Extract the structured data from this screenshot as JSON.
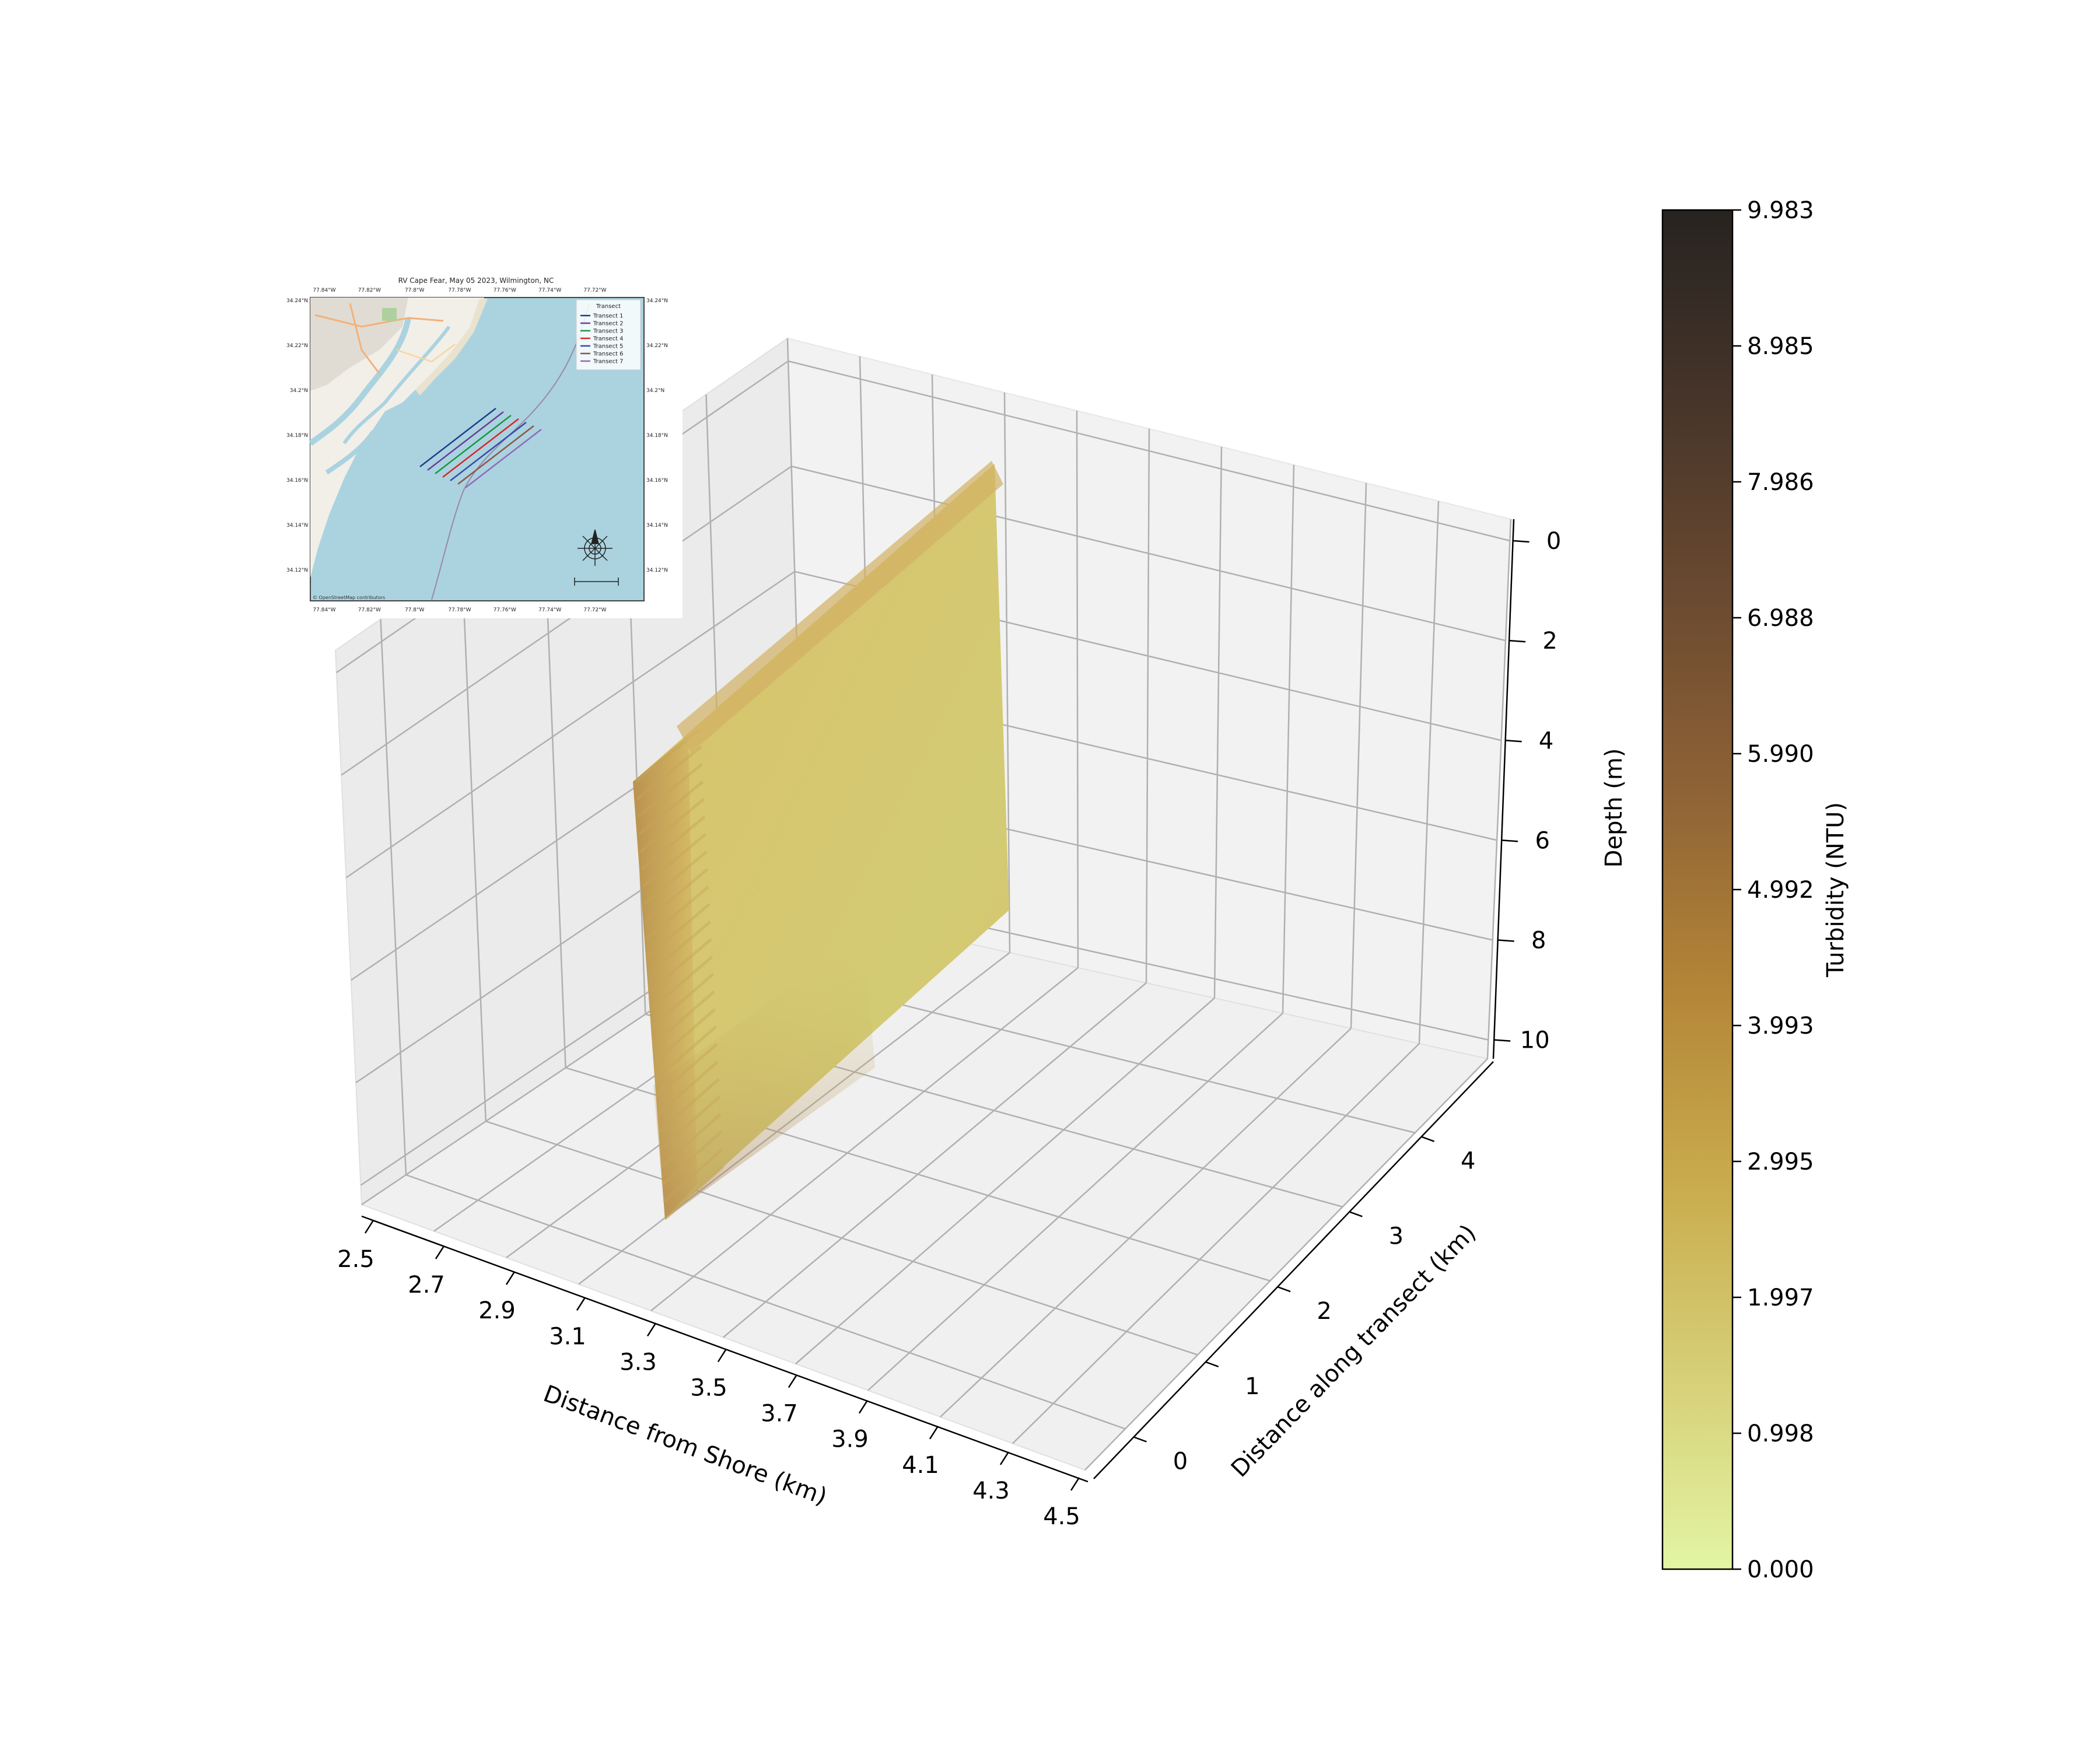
{
  "chart_data": {
    "type": "3d-surface",
    "xlabel": "Distance from Shore (km)",
    "ylabel": "Distance along transect (km)",
    "zlabel": "Depth (m)",
    "x_ticks": [
      "2.5",
      "2.7",
      "2.9",
      "3.1",
      "3.3",
      "3.5",
      "3.7",
      "3.9",
      "4.1",
      "4.3",
      "4.5"
    ],
    "y_ticks": [
      "0",
      "1",
      "2",
      "3",
      "4"
    ],
    "z_ticks": [
      "0",
      "2",
      "4",
      "6",
      "8",
      "10"
    ],
    "xlim": [
      2.5,
      4.5
    ],
    "ylim": [
      0,
      5
    ],
    "zlim": [
      0,
      10.5
    ],
    "z_inverted": true,
    "grid": true,
    "colorbar": {
      "label": "Turbidity (NTU)",
      "min": 0.0,
      "max": 9.983,
      "ticks": [
        "0.000",
        "0.998",
        "1.997",
        "2.995",
        "3.993",
        "4.992",
        "5.990",
        "6.988",
        "7.986",
        "8.985",
        "9.983"
      ],
      "colors": [
        "#e3f5a3",
        "#d6cf77",
        "#c9ab4d",
        "#b38537",
        "#8f6336",
        "#6b4a30",
        "#47352a",
        "#272320"
      ]
    },
    "series": [
      {
        "x_range": [
          3.3,
          3.35
        ],
        "y_range": [
          0,
          4.8
        ],
        "depth_range": [
          0,
          8
        ],
        "turbidity_typical": 1.6,
        "turbidity_edges": 3.5
      }
    ],
    "inset_map": {
      "title": "RV Cape Fear, May 05 2023, Wilmington, NC",
      "lon_ticks": [
        "77.84°W",
        "77.82°W",
        "77.8°W",
        "77.78°W",
        "77.76°W",
        "77.74°W",
        "77.72°W"
      ],
      "lat_ticks": [
        "34.24°N",
        "34.22°N",
        "34.2°N",
        "34.18°N",
        "34.16°N",
        "34.14°N",
        "34.12°N"
      ],
      "legend_title": "Transect",
      "legend_entries": [
        "Transect 1",
        "Transect 2",
        "Transect 3",
        "Transect 4",
        "Transect 5",
        "Transect 6",
        "Transect 7"
      ],
      "transect_colors": [
        "#1f3c8a",
        "#6a3d9a",
        "#1a9641",
        "#d62728",
        "#3949ab",
        "#8c564b",
        "#9467bd"
      ],
      "attribution": "© OpenStreetMap contributors"
    }
  }
}
